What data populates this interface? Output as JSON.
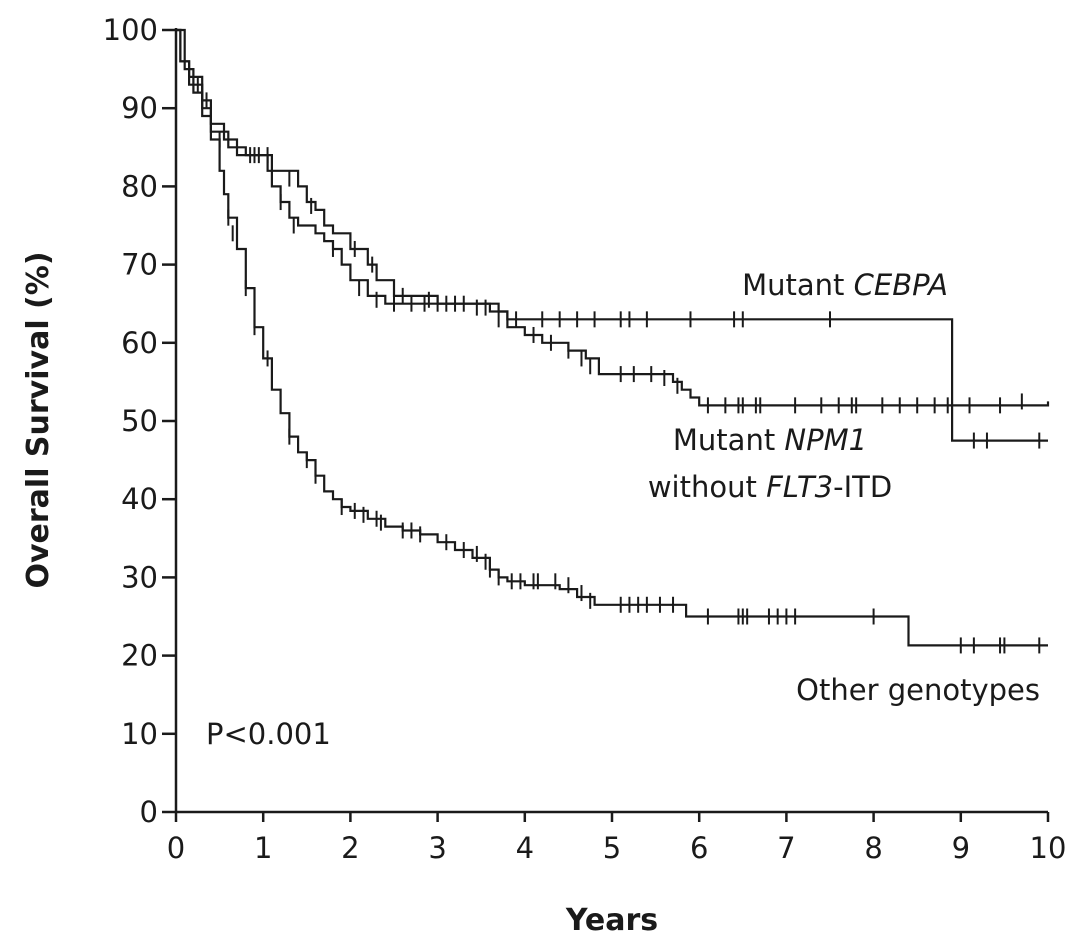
{
  "chart_data": {
    "type": "line",
    "title": "",
    "xlabel": "Years",
    "ylabel": "Overall Survival (%)",
    "xlim": [
      0,
      10
    ],
    "ylim": [
      0,
      100
    ],
    "xticks": [
      "0",
      "1",
      "2",
      "3",
      "4",
      "5",
      "6",
      "7",
      "8",
      "9",
      "10"
    ],
    "yticks": [
      "0",
      "10",
      "20",
      "30",
      "40",
      "50",
      "60",
      "70",
      "80",
      "90",
      "100"
    ],
    "grid": false,
    "step": true,
    "annotations": {
      "p_value": "P<0.001"
    },
    "series": [
      {
        "name": "Mutant CEBPA",
        "label_lines": [
          [
            {
              "t": "Mutant ",
              "italic": false
            },
            {
              "t": "CEBPA",
              "italic": true
            }
          ]
        ],
        "points": [
          [
            0,
            100
          ],
          [
            0.05,
            96
          ],
          [
            0.15,
            94
          ],
          [
            0.3,
            91
          ],
          [
            0.4,
            88
          ],
          [
            0.55,
            86
          ],
          [
            0.7,
            84
          ],
          [
            1.0,
            84
          ],
          [
            1.1,
            82
          ],
          [
            1.4,
            80
          ],
          [
            1.5,
            78
          ],
          [
            1.6,
            77
          ],
          [
            1.7,
            75
          ],
          [
            1.8,
            74
          ],
          [
            2.0,
            72
          ],
          [
            2.2,
            70
          ],
          [
            2.3,
            68
          ],
          [
            2.5,
            66
          ],
          [
            3.0,
            65
          ],
          [
            3.5,
            65
          ],
          [
            3.7,
            64
          ],
          [
            3.8,
            63
          ],
          [
            4.0,
            63
          ],
          [
            5.0,
            63
          ],
          [
            6.0,
            63
          ],
          [
            7.0,
            63
          ],
          [
            8.0,
            63
          ],
          [
            8.9,
            63
          ],
          [
            8.9,
            47.5
          ],
          [
            10,
            47.5
          ]
        ],
        "censored": [
          [
            0.2,
            94
          ],
          [
            0.35,
            91
          ],
          [
            0.9,
            84
          ],
          [
            1.05,
            84
          ],
          [
            1.3,
            81
          ],
          [
            1.55,
            77.5
          ],
          [
            2.05,
            72
          ],
          [
            2.25,
            70
          ],
          [
            2.6,
            66
          ],
          [
            2.9,
            65.5
          ],
          [
            3.1,
            65
          ],
          [
            3.3,
            65
          ],
          [
            3.55,
            64.5
          ],
          [
            3.9,
            63
          ],
          [
            4.2,
            63
          ],
          [
            4.4,
            63
          ],
          [
            4.6,
            63
          ],
          [
            4.8,
            63
          ],
          [
            5.1,
            63
          ],
          [
            5.2,
            63
          ],
          [
            5.4,
            63
          ],
          [
            5.9,
            63
          ],
          [
            6.4,
            63
          ],
          [
            6.5,
            63
          ],
          [
            7.5,
            63
          ],
          [
            9.15,
            47.5
          ],
          [
            9.3,
            47.5
          ],
          [
            9.9,
            47.5
          ]
        ],
        "label_pos": "right-upper"
      },
      {
        "name": "Mutant NPM1 without FLT3-ITD",
        "label_lines": [
          [
            {
              "t": "Mutant ",
              "italic": false
            },
            {
              "t": "NPM1",
              "italic": true
            }
          ],
          [
            {
              "t": "without ",
              "italic": false
            },
            {
              "t": "FLT3",
              "italic": true
            },
            {
              "t": "-ITD",
              "italic": false
            }
          ]
        ],
        "points": [
          [
            0,
            100
          ],
          [
            0.05,
            96
          ],
          [
            0.15,
            93
          ],
          [
            0.3,
            90
          ],
          [
            0.4,
            87
          ],
          [
            0.6,
            85
          ],
          [
            0.8,
            84
          ],
          [
            1.0,
            84
          ],
          [
            1.05,
            82
          ],
          [
            1.1,
            80
          ],
          [
            1.2,
            78
          ],
          [
            1.3,
            76
          ],
          [
            1.4,
            75
          ],
          [
            1.6,
            74
          ],
          [
            1.7,
            73
          ],
          [
            1.8,
            72
          ],
          [
            1.9,
            70
          ],
          [
            2.0,
            68
          ],
          [
            2.2,
            66
          ],
          [
            2.4,
            65
          ],
          [
            2.7,
            65
          ],
          [
            3.0,
            65
          ],
          [
            3.4,
            65
          ],
          [
            3.6,
            64
          ],
          [
            3.8,
            62
          ],
          [
            4.0,
            61
          ],
          [
            4.2,
            60
          ],
          [
            4.5,
            59
          ],
          [
            4.7,
            58
          ],
          [
            4.85,
            56
          ],
          [
            5.3,
            56
          ],
          [
            5.7,
            55
          ],
          [
            5.8,
            54
          ],
          [
            5.9,
            53
          ],
          [
            6.0,
            52
          ],
          [
            7.0,
            52
          ],
          [
            8.0,
            52
          ],
          [
            9.0,
            52
          ],
          [
            10,
            52.5
          ]
        ],
        "censored": [
          [
            0.25,
            93
          ],
          [
            0.5,
            86
          ],
          [
            0.85,
            84
          ],
          [
            0.95,
            84
          ],
          [
            1.2,
            78
          ],
          [
            1.35,
            75
          ],
          [
            1.8,
            72
          ],
          [
            2.1,
            67
          ],
          [
            2.3,
            65.5
          ],
          [
            2.5,
            65
          ],
          [
            2.7,
            65
          ],
          [
            2.85,
            65
          ],
          [
            3.0,
            65
          ],
          [
            3.2,
            65
          ],
          [
            3.45,
            64.5
          ],
          [
            3.7,
            63
          ],
          [
            4.1,
            61
          ],
          [
            4.3,
            60
          ],
          [
            4.5,
            59
          ],
          [
            4.65,
            58
          ],
          [
            4.75,
            57
          ],
          [
            5.1,
            56
          ],
          [
            5.25,
            56
          ],
          [
            5.45,
            56
          ],
          [
            5.6,
            55.5
          ],
          [
            5.75,
            54.5
          ],
          [
            6.1,
            52
          ],
          [
            6.3,
            52
          ],
          [
            6.45,
            52
          ],
          [
            6.5,
            52
          ],
          [
            6.65,
            52
          ],
          [
            6.7,
            52
          ],
          [
            7.1,
            52
          ],
          [
            7.4,
            52
          ],
          [
            7.6,
            52
          ],
          [
            7.75,
            52
          ],
          [
            7.8,
            52
          ],
          [
            8.1,
            52
          ],
          [
            8.3,
            52
          ],
          [
            8.5,
            52
          ],
          [
            8.7,
            52
          ],
          [
            8.85,
            52
          ],
          [
            9.1,
            52
          ],
          [
            9.45,
            52
          ],
          [
            9.7,
            52.5
          ]
        ],
        "label_pos": "center-right"
      },
      {
        "name": "Other genotypes",
        "label_lines": [
          [
            {
              "t": "Other genotypes",
              "italic": false
            }
          ]
        ],
        "points": [
          [
            0,
            100
          ],
          [
            0.1,
            95
          ],
          [
            0.2,
            92
          ],
          [
            0.3,
            89
          ],
          [
            0.4,
            86
          ],
          [
            0.5,
            82
          ],
          [
            0.55,
            79
          ],
          [
            0.6,
            76
          ],
          [
            0.7,
            72
          ],
          [
            0.8,
            67
          ],
          [
            0.9,
            62
          ],
          [
            1.0,
            58
          ],
          [
            1.1,
            54
          ],
          [
            1.2,
            51
          ],
          [
            1.3,
            48
          ],
          [
            1.4,
            46
          ],
          [
            1.5,
            45
          ],
          [
            1.6,
            43
          ],
          [
            1.7,
            41
          ],
          [
            1.8,
            40
          ],
          [
            1.9,
            39
          ],
          [
            2.0,
            38.5
          ],
          [
            2.2,
            37.5
          ],
          [
            2.4,
            36.5
          ],
          [
            2.6,
            36
          ],
          [
            2.8,
            35.5
          ],
          [
            3.0,
            34.5
          ],
          [
            3.2,
            33.5
          ],
          [
            3.4,
            32.5
          ],
          [
            3.6,
            31
          ],
          [
            3.7,
            30
          ],
          [
            3.8,
            29.5
          ],
          [
            4.0,
            29
          ],
          [
            4.4,
            28.5
          ],
          [
            4.6,
            27.5
          ],
          [
            4.8,
            26.5
          ],
          [
            5.0,
            26.5
          ],
          [
            5.2,
            26.5
          ],
          [
            5.8,
            26.5
          ],
          [
            5.85,
            25
          ],
          [
            7.0,
            25
          ],
          [
            8.0,
            25
          ],
          [
            8.4,
            25
          ],
          [
            8.4,
            21.3
          ],
          [
            10,
            21.3
          ]
        ],
        "censored": [
          [
            0.6,
            76
          ],
          [
            0.65,
            74
          ],
          [
            0.8,
            67
          ],
          [
            0.9,
            62
          ],
          [
            1.05,
            58
          ],
          [
            1.3,
            48
          ],
          [
            1.5,
            45
          ],
          [
            1.6,
            43
          ],
          [
            1.9,
            39
          ],
          [
            2.05,
            38.5
          ],
          [
            2.15,
            38
          ],
          [
            2.3,
            37.5
          ],
          [
            2.35,
            37
          ],
          [
            2.6,
            36
          ],
          [
            2.7,
            36
          ],
          [
            2.8,
            35.5
          ],
          [
            3.1,
            34.5
          ],
          [
            3.3,
            33.5
          ],
          [
            3.45,
            33
          ],
          [
            3.55,
            32
          ],
          [
            3.6,
            31
          ],
          [
            3.7,
            30
          ],
          [
            3.85,
            29.5
          ],
          [
            3.95,
            29.5
          ],
          [
            4.1,
            29.5
          ],
          [
            4.15,
            29.5
          ],
          [
            4.35,
            29.5
          ],
          [
            4.5,
            29
          ],
          [
            4.65,
            28
          ],
          [
            4.75,
            27
          ],
          [
            5.1,
            26.5
          ],
          [
            5.2,
            26.5
          ],
          [
            5.3,
            26.5
          ],
          [
            5.4,
            26.5
          ],
          [
            5.55,
            26.5
          ],
          [
            5.7,
            26.5
          ],
          [
            6.1,
            25
          ],
          [
            6.45,
            25
          ],
          [
            6.5,
            25
          ],
          [
            6.55,
            25
          ],
          [
            6.8,
            25
          ],
          [
            6.9,
            25
          ],
          [
            7.0,
            25
          ],
          [
            7.1,
            25
          ],
          [
            8.0,
            25
          ],
          [
            9.0,
            21.3
          ],
          [
            9.15,
            21.3
          ],
          [
            9.45,
            21.3
          ],
          [
            9.5,
            21.3
          ],
          [
            9.9,
            21.3
          ]
        ],
        "label_pos": "right-lower"
      }
    ]
  }
}
